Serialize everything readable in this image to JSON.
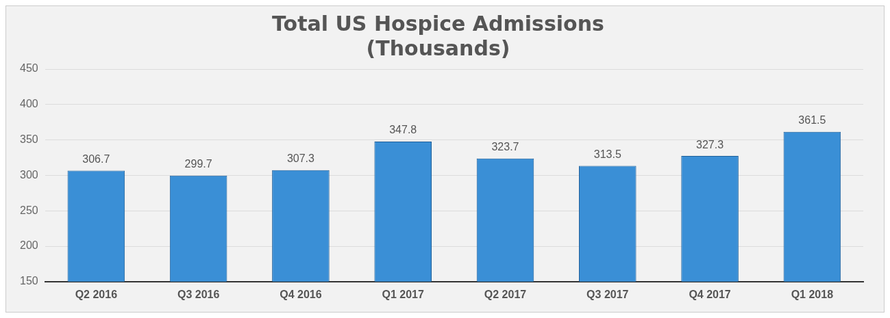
{
  "chart_data": {
    "type": "bar",
    "title": "Total US Hospice Admissions\n(Thousands)",
    "categories": [
      "Q2 2016",
      "Q3 2016",
      "Q4 2016",
      "Q1 2017",
      "Q2 2017",
      "Q3 2017",
      "Q4 2017",
      "Q1 2018"
    ],
    "values": [
      306.7,
      299.7,
      307.3,
      347.8,
      323.7,
      313.5,
      327.3,
      361.5
    ],
    "color": "#3a8fd6",
    "ylim": [
      150,
      450
    ],
    "yticks": [
      150,
      200,
      250,
      300,
      350,
      400,
      450
    ],
    "grid": "y",
    "data_labels": true,
    "legend": false
  }
}
